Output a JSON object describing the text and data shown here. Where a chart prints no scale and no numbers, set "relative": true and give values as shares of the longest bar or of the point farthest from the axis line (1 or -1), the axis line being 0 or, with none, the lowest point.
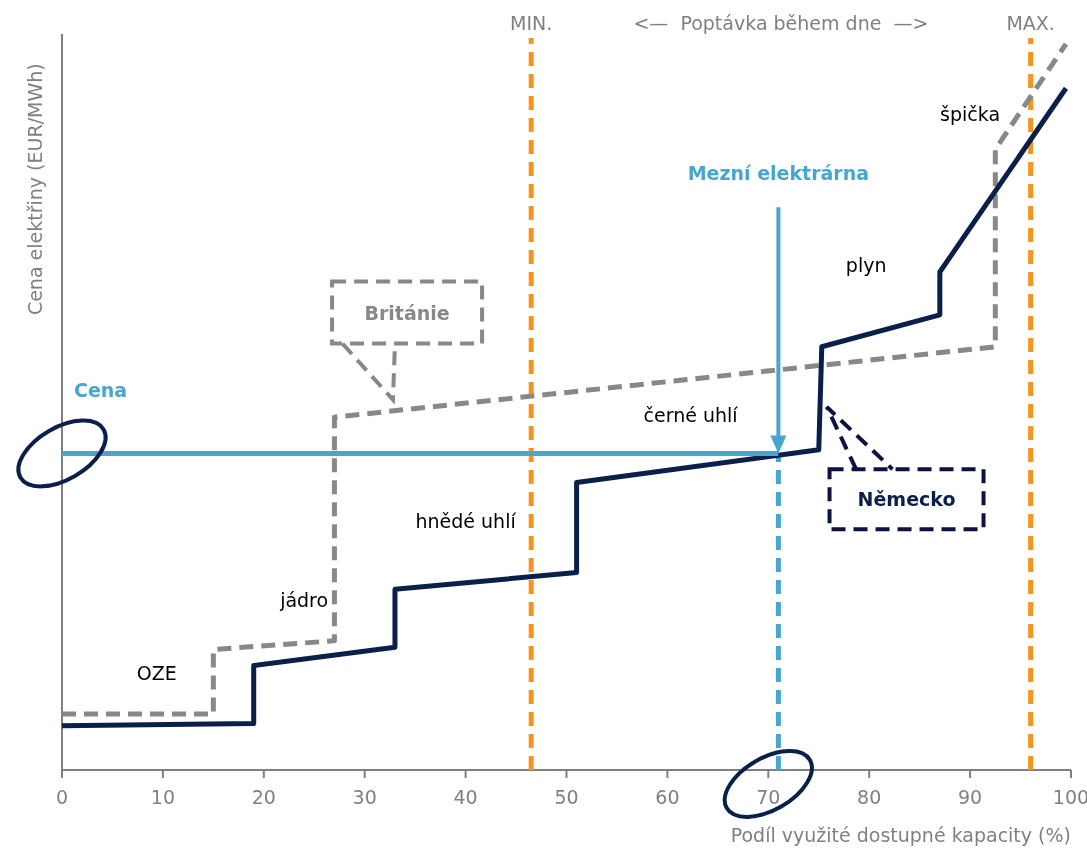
{
  "chart_data": {
    "type": "line",
    "relative": true,
    "xlabel": "Podíl využité dostupné kapacity (%)",
    "ylabel": "Cena elektřiny (EUR/MWh)",
    "xlim": [
      0,
      100
    ],
    "xticks": [
      0,
      10,
      20,
      30,
      40,
      50,
      60,
      70,
      80,
      90,
      100
    ],
    "tick_labels": "x",
    "grid": false,
    "marker": "none",
    "series": [
      {
        "name": "Británie",
        "color": "#888888",
        "line_style": "dashed",
        "x": [
          0,
          15,
          15,
          27,
          27,
          92.5,
          92.5,
          99.5
        ],
        "values": [
          0.077,
          0.077,
          0.166,
          0.178,
          0.486,
          0.583,
          0.855,
          1
        ]
      },
      {
        "name": "Německo",
        "color": "#0b1f4b",
        "line_style": "solid",
        "x": [
          0,
          19,
          19,
          33,
          33,
          51,
          51,
          75,
          75.3,
          87,
          87,
          99.5
        ],
        "values": [
          0.061,
          0.064,
          0.144,
          0.169,
          0.249,
          0.272,
          0.396,
          0.441,
          0.583,
          0.627,
          0.686,
          0.939
        ]
      },
      {
        "name": "Cena",
        "color": "#46a6d0",
        "line_style": "solid",
        "x": [
          0,
          71
        ],
        "values": [
          0.436,
          0.436
        ]
      }
    ],
    "ref_lines": [
      {
        "axis": "x",
        "value": 46.5,
        "label": "MIN.",
        "color": "#f7941d",
        "line_style": "dashed"
      },
      {
        "axis": "x",
        "value": 96,
        "label": "MAX.",
        "color": "#f7941d",
        "line_style": "dashed"
      },
      {
        "axis": "x",
        "value": 71,
        "label": "Mezní elektrárna",
        "color": "#46a6d0",
        "line_style": "dashed"
      }
    ],
    "annotations": [
      "<—  Poptávka během dne  —>",
      "OZE",
      "jádro",
      "hnědé uhlí",
      "černé uhlí",
      "plyn",
      "špička"
    ]
  }
}
